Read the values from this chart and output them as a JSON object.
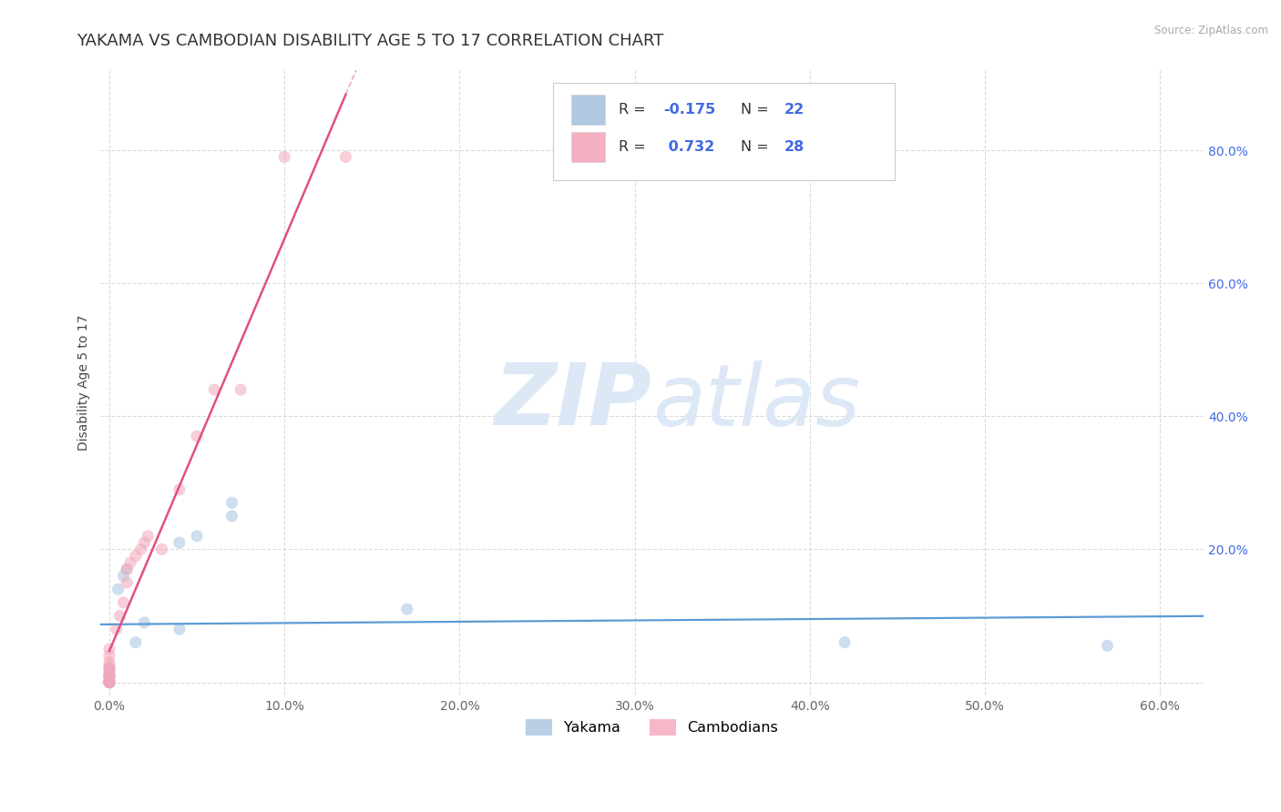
{
  "title": "YAKAMA VS CAMBODIAN DISABILITY AGE 5 TO 17 CORRELATION CHART",
  "source_text": "Source: ZipAtlas.com",
  "ylabel": "Disability Age 5 to 17",
  "xlim": [
    -0.005,
    0.625
  ],
  "ylim": [
    -0.02,
    0.92
  ],
  "xticks": [
    0.0,
    0.1,
    0.2,
    0.3,
    0.4,
    0.5,
    0.6
  ],
  "xtick_labels": [
    "0.0%",
    "10.0%",
    "20.0%",
    "30.0%",
    "40.0%",
    "50.0%",
    "60.0%"
  ],
  "yticks": [
    0.0,
    0.2,
    0.4,
    0.6,
    0.8
  ],
  "ytick_labels": [
    "",
    "20.0%",
    "40.0%",
    "60.0%",
    "80.0%"
  ],
  "yakama_color": "#a8c4e0",
  "cambodian_color": "#f4a7b9",
  "trendline_yakama_color": "#5b9bd5",
  "trendline_cambodian_color": "#e05080",
  "legend_R_yakama": "-0.175",
  "legend_N_yakama": "22",
  "legend_R_cambodian": "0.732",
  "legend_N_cambodian": "28",
  "legend_text_color": "#4169e1",
  "legend_label_yakama": "Yakama",
  "legend_label_cambodian": "Cambodians",
  "yakama_x": [
    0.0,
    0.0,
    0.0,
    0.0,
    0.0,
    0.0,
    0.0,
    0.0,
    0.0,
    0.005,
    0.008,
    0.01,
    0.015,
    0.02,
    0.04,
    0.04,
    0.05,
    0.07,
    0.07,
    0.17,
    0.42,
    0.57
  ],
  "yakama_y": [
    0.0,
    0.0,
    0.0,
    0.005,
    0.008,
    0.01,
    0.01,
    0.02,
    0.02,
    0.14,
    0.16,
    0.17,
    0.06,
    0.09,
    0.08,
    0.21,
    0.22,
    0.25,
    0.27,
    0.11,
    0.06,
    0.055
  ],
  "cambodian_x": [
    0.0,
    0.0,
    0.0,
    0.0,
    0.0,
    0.0,
    0.0,
    0.0,
    0.0,
    0.0,
    0.0,
    0.004,
    0.006,
    0.008,
    0.01,
    0.01,
    0.012,
    0.015,
    0.018,
    0.02,
    0.022,
    0.03,
    0.04,
    0.05,
    0.06,
    0.075,
    0.1,
    0.135
  ],
  "cambodian_y": [
    0.0,
    0.0,
    0.0,
    0.005,
    0.01,
    0.015,
    0.02,
    0.025,
    0.03,
    0.04,
    0.05,
    0.08,
    0.1,
    0.12,
    0.15,
    0.17,
    0.18,
    0.19,
    0.2,
    0.21,
    0.22,
    0.2,
    0.29,
    0.37,
    0.44,
    0.44,
    0.79,
    0.79
  ],
  "title_fontsize": 13,
  "axis_label_fontsize": 10,
  "tick_fontsize": 10,
  "dot_size": 90,
  "dot_alpha": 0.55,
  "grid_color": "#cccccc",
  "grid_alpha": 0.7,
  "background_color": "#ffffff",
  "watermark_color": "#dce8f5"
}
